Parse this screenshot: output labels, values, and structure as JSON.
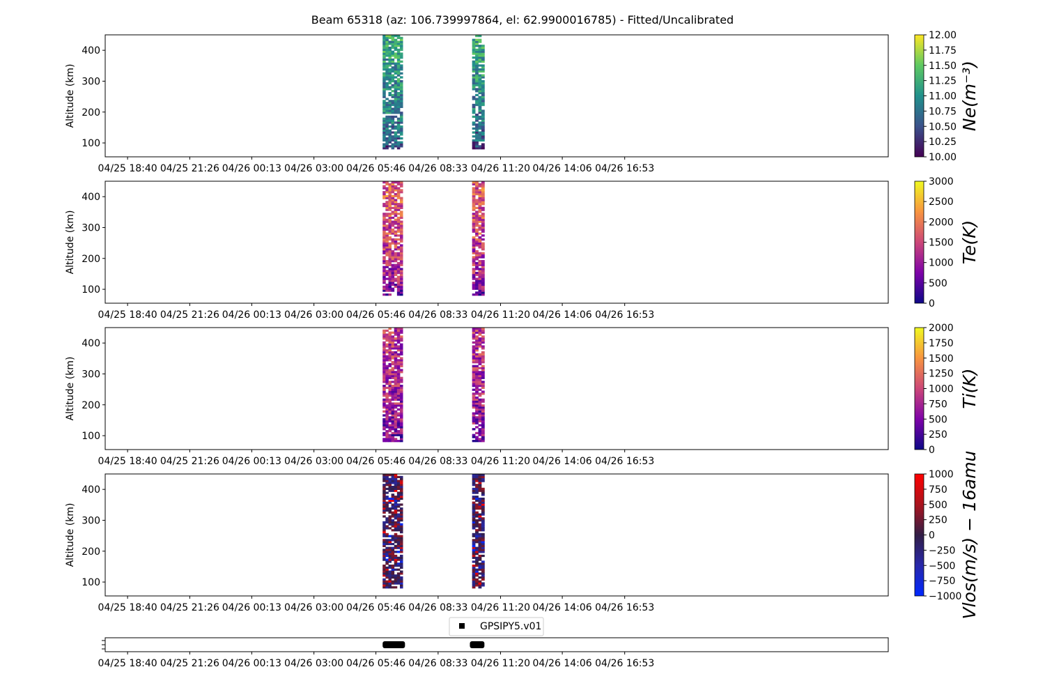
{
  "chart_data": {
    "type": "heatmap",
    "title": "Beam 65318 (az: 106.739997864, el: 62.9900016785) - Fitted/Uncalibrated",
    "x_ticks": [
      "04/25 18:40",
      "04/25 21:26",
      "04/26 00:13",
      "04/26 03:00",
      "04/26 05:46",
      "04/26 08:33",
      "04/26 11:20",
      "04/26 14:06",
      "04/26 16:53"
    ],
    "x_tick_hours": [
      0,
      2.78,
      5.55,
      8.33,
      11.1,
      13.88,
      16.67,
      19.43,
      22.22
    ],
    "x_range_hours": [
      -1.0,
      34.0
    ],
    "ylabel": "Altitude (km)",
    "y_ticks": [
      100,
      200,
      300,
      400
    ],
    "ylim": [
      55,
      450
    ],
    "data_blocks": [
      {
        "start_hour": 11.4,
        "end_hour": 12.3
      },
      {
        "start_hour": 15.4,
        "end_hour": 15.95
      }
    ],
    "panels": [
      {
        "name": "Ne",
        "colorbar_label": "Ne(m⁻³)",
        "colormap": "viridis",
        "clim": [
          10.0,
          12.0
        ],
        "cb_ticks": [
          "10.00",
          "10.25",
          "10.50",
          "10.75",
          "11.00",
          "11.25",
          "11.50",
          "11.75",
          "12.00"
        ],
        "cb_tick_values": [
          10.0,
          10.25,
          10.5,
          10.75,
          11.0,
          11.25,
          11.5,
          11.75,
          12.0
        ],
        "typical_value_low_alt": 10.4,
        "typical_value_high_alt": 11.2
      },
      {
        "name": "Te",
        "colorbar_label": "Te(K)",
        "colormap": "plasma",
        "clim": [
          0,
          3000
        ],
        "cb_ticks": [
          "0",
          "500",
          "1000",
          "1500",
          "2000",
          "2500",
          "3000"
        ],
        "cb_tick_values": [
          0,
          500,
          1000,
          1500,
          2000,
          2500,
          3000
        ],
        "typical_value_low_alt": 600,
        "typical_value_high_alt": 1800
      },
      {
        "name": "Ti",
        "colorbar_label": "Ti(K)",
        "colormap": "plasma",
        "clim": [
          0,
          2000
        ],
        "cb_ticks": [
          "0",
          "250",
          "500",
          "750",
          "1000",
          "1250",
          "1500",
          "1750",
          "2000"
        ],
        "cb_tick_values": [
          0,
          250,
          500,
          750,
          1000,
          1250,
          1500,
          1750,
          2000
        ],
        "typical_value_low_alt": 400,
        "typical_value_high_alt": 900
      },
      {
        "name": "Vlos",
        "colorbar_label": "Vlos(m/s) − 16amu",
        "colormap": "bwr_dark",
        "clim": [
          -1000,
          1000
        ],
        "cb_ticks": [
          "1000",
          "750",
          "500",
          "250",
          "0",
          "−250",
          "−500",
          "−750",
          "−1000"
        ],
        "cb_tick_values": [
          1000,
          750,
          500,
          250,
          0,
          -250,
          -500,
          -750,
          -1000
        ],
        "typical_value_low_alt": 0,
        "typical_value_high_alt": 0
      }
    ],
    "bottom_panel": {
      "legend": "GPSIPY5.v01",
      "bars": [
        {
          "start_hour": 11.4,
          "end_hour": 12.4
        },
        {
          "start_hour": 15.3,
          "end_hour": 15.95
        }
      ]
    }
  }
}
